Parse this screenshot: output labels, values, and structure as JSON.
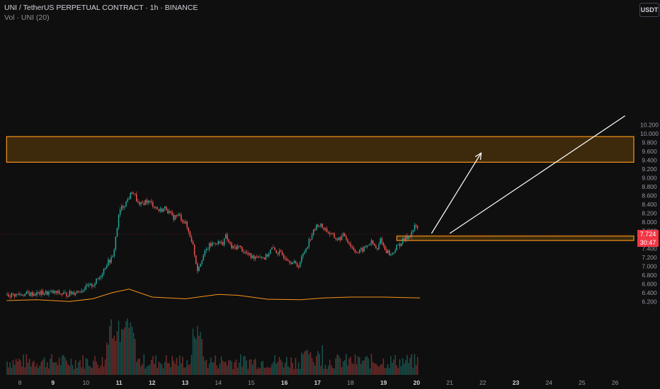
{
  "legend": {
    "title": "UNI / TetherUS PERPETUAL CONTRACT · 1h · BINANCE",
    "volume": "Vol · UNI (20)"
  },
  "currency_button": "USDT",
  "last_price": {
    "value": "7.724",
    "countdown": "30:47",
    "color": "#f23645"
  },
  "colors": {
    "background": "#0f0f0f",
    "up": "#26a69a",
    "down": "#ef5350",
    "zone_border": "#f7931a",
    "zone_fill": "#3d2a0c",
    "arrow": "#ffffff",
    "volume_ma": "#f7931a",
    "last_price_line": "#f23645"
  },
  "chart_data": {
    "type": "candlestick",
    "symbol": "UNI / TetherUS PERPETUAL CONTRACT",
    "interval": "1h",
    "exchange": "BINANCE",
    "y_ticks": [
      "10.200",
      "10.000",
      "9.800",
      "9.600",
      "9.400",
      "9.200",
      "9.000",
      "8.800",
      "8.600",
      "8.400",
      "8.200",
      "8.000",
      "7.800",
      "7.600",
      "7.400",
      "7.200",
      "7.000",
      "6.800",
      "6.600",
      "6.400",
      "6.200"
    ],
    "x_ticks": [
      {
        "label": "8",
        "bold": false
      },
      {
        "label": "9",
        "bold": true
      },
      {
        "label": "10",
        "bold": false
      },
      {
        "label": "11",
        "bold": true
      },
      {
        "label": "12",
        "bold": true
      },
      {
        "label": "13",
        "bold": true
      },
      {
        "label": "14",
        "bold": false
      },
      {
        "label": "15",
        "bold": false
      },
      {
        "label": "16",
        "bold": true
      },
      {
        "label": "17",
        "bold": true
      },
      {
        "label": "18",
        "bold": false
      },
      {
        "label": "19",
        "bold": true
      },
      {
        "label": "20",
        "bold": true
      },
      {
        "label": "21",
        "bold": false
      },
      {
        "label": "22",
        "bold": false
      },
      {
        "label": "23",
        "bold": true
      },
      {
        "label": "24",
        "bold": false
      },
      {
        "label": "25",
        "bold": false
      },
      {
        "label": "26",
        "bold": false
      }
    ],
    "y_range": [
      6.12,
      10.32
    ],
    "x_range_days": [
      7.6,
      26.8
    ],
    "price_path": [
      [
        7.6,
        6.34
      ],
      [
        8.0,
        6.36
      ],
      [
        8.5,
        6.38
      ],
      [
        9.0,
        6.4
      ],
      [
        9.4,
        6.36
      ],
      [
        9.8,
        6.45
      ],
      [
        10.2,
        6.58
      ],
      [
        10.4,
        6.75
      ],
      [
        10.6,
        7.05
      ],
      [
        10.8,
        7.2
      ],
      [
        10.9,
        7.75
      ],
      [
        11.0,
        8.25
      ],
      [
        11.2,
        8.45
      ],
      [
        11.4,
        8.7
      ],
      [
        11.6,
        8.35
      ],
      [
        11.8,
        8.48
      ],
      [
        12.0,
        8.4
      ],
      [
        12.2,
        8.25
      ],
      [
        12.4,
        8.32
      ],
      [
        12.6,
        8.1
      ],
      [
        12.8,
        8.15
      ],
      [
        13.0,
        7.95
      ],
      [
        13.2,
        7.55
      ],
      [
        13.35,
        6.92
      ],
      [
        13.5,
        7.2
      ],
      [
        13.7,
        7.45
      ],
      [
        13.9,
        7.55
      ],
      [
        14.1,
        7.5
      ],
      [
        14.2,
        7.68
      ],
      [
        14.4,
        7.4
      ],
      [
        14.6,
        7.45
      ],
      [
        14.8,
        7.3
      ],
      [
        15.0,
        7.2
      ],
      [
        15.2,
        7.25
      ],
      [
        15.4,
        7.18
      ],
      [
        15.6,
        7.4
      ],
      [
        15.8,
        7.3
      ],
      [
        16.0,
        7.22
      ],
      [
        16.2,
        7.1
      ],
      [
        16.4,
        7.0
      ],
      [
        16.6,
        7.35
      ],
      [
        16.8,
        7.7
      ],
      [
        17.0,
        7.95
      ],
      [
        17.2,
        7.85
      ],
      [
        17.4,
        7.7
      ],
      [
        17.6,
        7.6
      ],
      [
        17.8,
        7.7
      ],
      [
        18.0,
        7.45
      ],
      [
        18.2,
        7.3
      ],
      [
        18.4,
        7.4
      ],
      [
        18.6,
        7.55
      ],
      [
        18.8,
        7.35
      ],
      [
        18.9,
        7.65
      ],
      [
        19.0,
        7.4
      ],
      [
        19.2,
        7.25
      ],
      [
        19.4,
        7.45
      ],
      [
        19.6,
        7.6
      ],
      [
        19.8,
        7.72
      ],
      [
        19.95,
        7.92
      ],
      [
        20.1,
        7.72
      ]
    ],
    "volume_ma_path": [
      [
        7.6,
        6.22
      ],
      [
        8.5,
        6.24
      ],
      [
        9.5,
        6.2
      ],
      [
        10.2,
        6.26
      ],
      [
        10.8,
        6.4
      ],
      [
        11.3,
        6.48
      ],
      [
        12.0,
        6.3
      ],
      [
        13.0,
        6.26
      ],
      [
        14.0,
        6.36
      ],
      [
        14.6,
        6.34
      ],
      [
        15.5,
        6.25
      ],
      [
        16.5,
        6.24
      ],
      [
        17.2,
        6.28
      ],
      [
        18.0,
        6.3
      ],
      [
        19.0,
        6.3
      ],
      [
        20.1,
        6.28
      ]
    ],
    "zones": [
      {
        "name": "upper-supply-zone",
        "y_top": 9.93,
        "y_bottom": 9.35,
        "x_start": 7.6,
        "x_end": 26.8
      },
      {
        "name": "lower-demand-zone",
        "y_top": 7.68,
        "y_bottom": 7.58,
        "x_start": 19.4,
        "x_end": 26.8
      }
    ],
    "arrows": [
      {
        "from": [
          20.45,
          7.74
        ],
        "to": [
          21.95,
          9.56
        ],
        "head": true
      },
      {
        "from": [
          21.0,
          7.74
        ],
        "to": [
          26.3,
          10.4
        ],
        "head": false
      }
    ],
    "last_price": 7.724
  }
}
